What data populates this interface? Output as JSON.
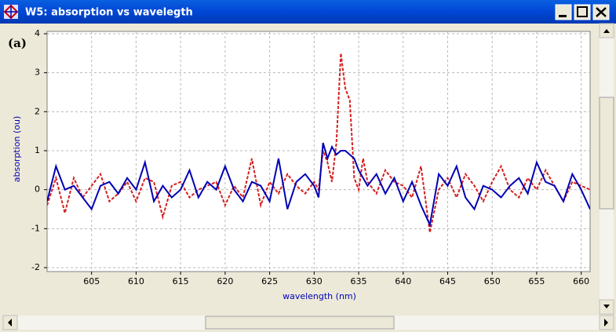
{
  "window": {
    "title": "W5: absorption vs wavelegth"
  },
  "chart_data": {
    "type": "line",
    "panel_label": "(a)",
    "x_label": "wavelength (nm)",
    "y_label": "absorption (ou)",
    "x": [
      600,
      601,
      602,
      603,
      604,
      605,
      606,
      607,
      608,
      609,
      610,
      611,
      612,
      613,
      614,
      615,
      616,
      617,
      618,
      619,
      620,
      621,
      622,
      623,
      624,
      625,
      626,
      627,
      628,
      629,
      630,
      630.5,
      631,
      631.5,
      632,
      632.5,
      633,
      633.5,
      634,
      634.5,
      635,
      635.5,
      636,
      637,
      638,
      639,
      640,
      641,
      642,
      643,
      644,
      645,
      646,
      647,
      648,
      649,
      650,
      651,
      652,
      653,
      654,
      655,
      656,
      657,
      658,
      659,
      660,
      661
    ],
    "series": [
      {
        "color": "#0000b4",
        "dash": false,
        "values": [
          -0.3,
          0.6,
          0,
          0.1,
          -0.2,
          -0.5,
          0.1,
          0.2,
          -0.1,
          0.3,
          0,
          0.7,
          -0.3,
          0.1,
          -0.2,
          0,
          0.5,
          -0.2,
          0.2,
          0,
          0.6,
          0,
          -0.3,
          0.2,
          0.1,
          -0.3,
          0.8,
          -0.5,
          0.2,
          0.4,
          0.1,
          -0.2,
          1.2,
          0.8,
          1.1,
          0.9,
          1.0,
          1.0,
          0.9,
          0.8,
          0.5,
          0.3,
          0.1,
          0.4,
          -0.1,
          0.3,
          -0.3,
          0.2,
          -0.4,
          -0.9,
          0.4,
          0.1,
          0.6,
          -0.2,
          -0.5,
          0.1,
          0,
          -0.2,
          0.1,
          0.3,
          -0.1,
          0.7,
          0.2,
          0.1,
          -0.3,
          0.4,
          0,
          -0.5
        ]
      },
      {
        "color": "#d42020",
        "dash": true,
        "values": [
          -0.4,
          0.3,
          -0.6,
          0.3,
          -0.2,
          0.1,
          0.4,
          -0.3,
          -0.1,
          0.2,
          -0.3,
          0.3,
          0.2,
          -0.7,
          0.1,
          0.2,
          -0.2,
          0,
          0.1,
          0.2,
          -0.4,
          0.1,
          -0.2,
          0.8,
          -0.4,
          0.2,
          -0.1,
          0.4,
          0.1,
          -0.1,
          0.2,
          0,
          1.0,
          0.7,
          0.2,
          1.2,
          3.5,
          2.6,
          2.3,
          0.3,
          0,
          0.8,
          0.2,
          -0.1,
          0.5,
          0.2,
          0.1,
          -0.2,
          0.6,
          -1.1,
          0,
          0.3,
          -0.2,
          0.4,
          0.1,
          -0.3,
          0.2,
          0.6,
          0,
          -0.2,
          0.3,
          0,
          0.5,
          0.1,
          -0.3,
          0.2,
          0.1,
          0
        ]
      }
    ],
    "xlim": [
      600,
      661
    ],
    "ylim": [
      -2,
      4
    ],
    "xticks": [
      605,
      610,
      615,
      620,
      625,
      630,
      635,
      640,
      645,
      650,
      655,
      660
    ],
    "yticks": [
      -2,
      -1,
      0,
      1,
      2,
      3,
      4
    ],
    "grid": true
  }
}
